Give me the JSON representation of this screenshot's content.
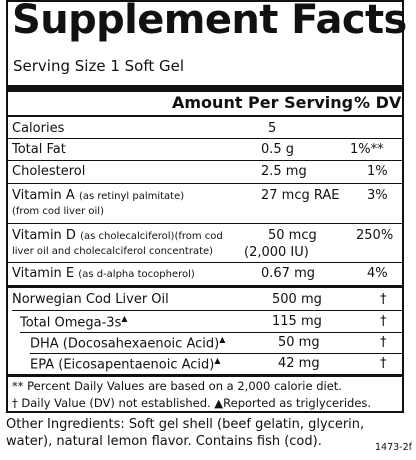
{
  "title": "Supplement Facts",
  "serving_size": "Serving Size 1 Soft Gel",
  "header": {
    "amount": "Amount Per Serving",
    "dv": "% DV"
  },
  "rows": [
    {
      "name": "Calories",
      "amount": "5",
      "dv": ""
    },
    {
      "name": "Total Fat",
      "amount": "0.5 g",
      "dv": "1%**"
    },
    {
      "name": "Cholesterol",
      "amount": "2.5 mg",
      "dv": "1%"
    },
    {
      "name": "Vitamin A",
      "note": "(as retinyl palmitate)",
      "note2": "(from cod liver oil)",
      "amount": "27 mcg RAE",
      "dv": "3%"
    },
    {
      "name": "Vitamin D",
      "note": "(as cholecalciferol)(from cod",
      "note2": "liver oil and cholecalciferol concentrate)",
      "amount": "50 mcg",
      "amount2": "(2,000 IU)",
      "dv": "250%"
    },
    {
      "name": "Vitamin E",
      "note": "(as d-alpha tocopherol)",
      "amount": "0.67 mg",
      "dv": "4%"
    }
  ],
  "oil_rows": [
    {
      "name": "Norwegian Cod Liver Oil",
      "amount": "500 mg",
      "dv": "†"
    },
    {
      "name": "Total Omega-3s",
      "mark": "▲",
      "amount": "115 mg",
      "dv": "†"
    },
    {
      "name": "DHA (Docosahexaenoic Acid)",
      "mark": "▲",
      "amount": "50 mg",
      "dv": "†"
    },
    {
      "name": "EPA (Eicosapentaenoic Acid)",
      "mark": "▲",
      "amount": "42 mg",
      "dv": "†"
    }
  ],
  "footnotes": [
    "** Percent Daily Values are based on a 2,000 calorie diet.",
    "† Daily Value (DV) not established.  ▲Reported as triglycerides."
  ],
  "ingredients": [
    "Other Ingredients:  Soft gel shell (beef gelatin, glycerin,",
    "water), natural lemon flavor.  Contains fish (cod)."
  ],
  "code": "1473-2f"
}
